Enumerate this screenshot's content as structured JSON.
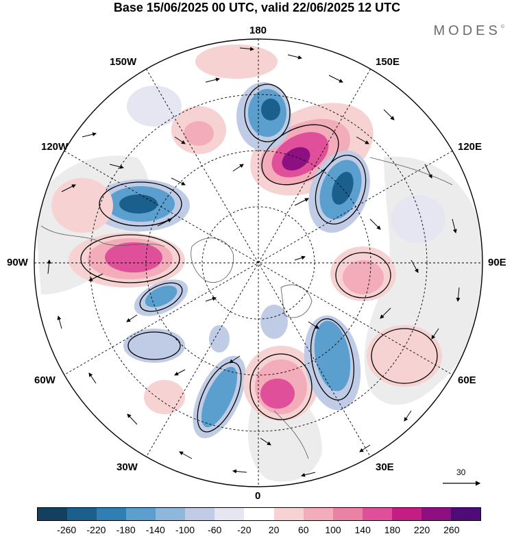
{
  "title": "Base 15/06/2025 00 UTC, valid 22/06/2025 12 UTC",
  "brand": "MODES",
  "brand_mark": "©",
  "longitude_labels": {
    "top": "180",
    "top_left": "150W",
    "top_right": "150E",
    "upper_left": "120W",
    "upper_right": "120E",
    "left": "90W",
    "right": "90E",
    "lower_left": "60W",
    "lower_right": "60E",
    "bottom_left": "30W",
    "bottom_right": "30E",
    "bottom": "0"
  },
  "vector_scale": "30",
  "colorbar": {
    "colors": [
      "#14405f",
      "#1b5f8c",
      "#2f7fb5",
      "#5a9fcd",
      "#8eb7dc",
      "#c0cbe5",
      "#e6e6f2",
      "#ffffff",
      "#f6d2d2",
      "#f2acba",
      "#ea82a6",
      "#e0509a",
      "#c41e85",
      "#8e0f82",
      "#4f0c78"
    ],
    "ticks": [
      "-260",
      "-220",
      "-180",
      "-140",
      "-100",
      "-60",
      "-20",
      "20",
      "60",
      "100",
      "140",
      "180",
      "220",
      "260"
    ]
  },
  "anomaly_palette": {
    "neg_strong": "#1b5f8c",
    "neg_mid": "#5a9fcd",
    "neg_weak": "#c0cbe5",
    "neg_faint": "#e6e6f2",
    "pos_faint": "#f6d2d2",
    "pos_weak": "#f2acba",
    "pos_mid": "#e0509a",
    "pos_strong": "#8e0f82",
    "land_shade": "#e8e8e8"
  }
}
